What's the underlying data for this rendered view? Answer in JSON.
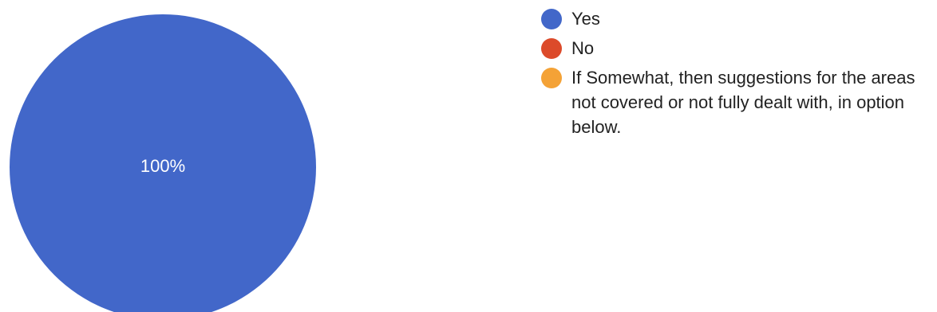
{
  "chart_data": {
    "type": "pie",
    "categories": [
      "Yes",
      "No",
      "If Somewhat, then suggestions for the areas not covered or not fully dealt with, in option below."
    ],
    "values": [
      100,
      0,
      0
    ],
    "data_labels": [
      "100%",
      "",
      ""
    ],
    "colors": [
      "#4267c9",
      "#dc4a2a",
      "#f4a236"
    ],
    "legend_position": "right"
  }
}
